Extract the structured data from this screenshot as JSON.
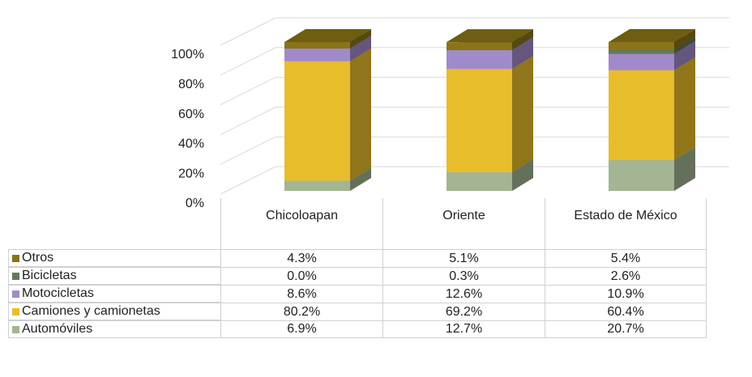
{
  "chart_data": {
    "type": "bar3d_stacked",
    "categories": [
      "Chicoloapan",
      "Oriente",
      "Estado de México"
    ],
    "series": [
      {
        "name": "Automóviles",
        "color": "#a3b593",
        "values": [
          6.9,
          12.7,
          20.7
        ],
        "value_labels": [
          "6.9%",
          "12.7%",
          "20.7%"
        ]
      },
      {
        "name": "Camiones y camionetas",
        "color": "#e8bd2b",
        "values": [
          80.2,
          69.2,
          60.4
        ],
        "value_labels": [
          "80.2%",
          "69.2%",
          "60.4%"
        ]
      },
      {
        "name": "Motocicletas",
        "color": "#a18ac9",
        "values": [
          8.6,
          12.6,
          10.9
        ],
        "value_labels": [
          "8.6%",
          "12.6%",
          "10.9%"
        ]
      },
      {
        "name": "Bicicletas",
        "color": "#63795a",
        "values": [
          0.0,
          0.3,
          2.6
        ],
        "value_labels": [
          "0.0%",
          "0.3%",
          "2.6%"
        ]
      },
      {
        "name": "Otros",
        "color": "#8a7417",
        "values": [
          4.3,
          5.1,
          5.4
        ],
        "value_labels": [
          "4.3%",
          "5.1%",
          "5.4%"
        ]
      }
    ],
    "ylim": [
      0,
      100
    ],
    "yticks": [
      {
        "value": 0,
        "label": "0%"
      },
      {
        "value": 20,
        "label": "20%"
      },
      {
        "value": 40,
        "label": "40%"
      },
      {
        "value": 60,
        "label": "60%"
      },
      {
        "value": 80,
        "label": "80%"
      },
      {
        "value": 100,
        "label": "100%"
      }
    ],
    "grid": true,
    "legend": "table"
  }
}
